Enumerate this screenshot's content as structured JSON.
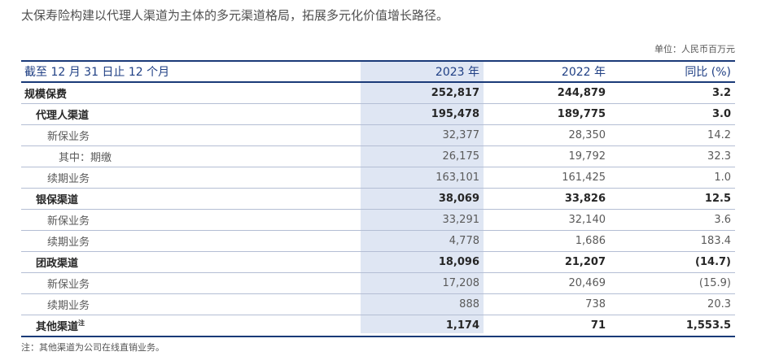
{
  "intro_text": "太保寿险构建以代理人渠道为主体的多元渠道格局，拓展多元化价值增长路径。",
  "unit_label": "单位：人民币百万元",
  "table": {
    "headers": [
      "截至 12 月 31 日止 12 个月",
      "2023 年",
      "2022 年",
      "同比 (%)"
    ],
    "rows": [
      {
        "level": 0,
        "label": "规模保费",
        "sup": "",
        "v2023": "252,817",
        "v2022": "244,879",
        "yoy": "3.2"
      },
      {
        "level": 1,
        "label": "代理人渠道",
        "sup": "",
        "v2023": "195,478",
        "v2022": "189,775",
        "yoy": "3.0"
      },
      {
        "level": 2,
        "label": "新保业务",
        "sup": "",
        "v2023": "32,377",
        "v2022": "28,350",
        "yoy": "14.2"
      },
      {
        "level": 3,
        "label": "其中：期缴",
        "sup": "",
        "v2023": "26,175",
        "v2022": "19,792",
        "yoy": "32.3"
      },
      {
        "level": 2,
        "label": "续期业务",
        "sup": "",
        "v2023": "163,101",
        "v2022": "161,425",
        "yoy": "1.0"
      },
      {
        "level": 1,
        "label": "银保渠道",
        "sup": "",
        "v2023": "38,069",
        "v2022": "33,826",
        "yoy": "12.5"
      },
      {
        "level": 2,
        "label": "新保业务",
        "sup": "",
        "v2023": "33,291",
        "v2022": "32,140",
        "yoy": "3.6"
      },
      {
        "level": 2,
        "label": "续期业务",
        "sup": "",
        "v2023": "4,778",
        "v2022": "1,686",
        "yoy": "183.4"
      },
      {
        "level": 1,
        "label": "团政渠道",
        "sup": "",
        "v2023": "18,096",
        "v2022": "21,207",
        "yoy": "(14.7)"
      },
      {
        "level": 2,
        "label": "新保业务",
        "sup": "",
        "v2023": "17,208",
        "v2022": "20,469",
        "yoy": "(15.9)"
      },
      {
        "level": 2,
        "label": "续期业务",
        "sup": "",
        "v2023": "888",
        "v2022": "738",
        "yoy": "20.3"
      },
      {
        "level": 1,
        "label": "其他渠道",
        "sup": "注",
        "v2023": "1,174",
        "v2022": "71",
        "yoy": "1,553.5"
      }
    ]
  },
  "footnote": "注：其他渠道为公司在线直销业务。",
  "colors": {
    "header_text": "#1f3f84",
    "rule": "#1a3a78",
    "highlight_column": "#dfe6f3"
  }
}
